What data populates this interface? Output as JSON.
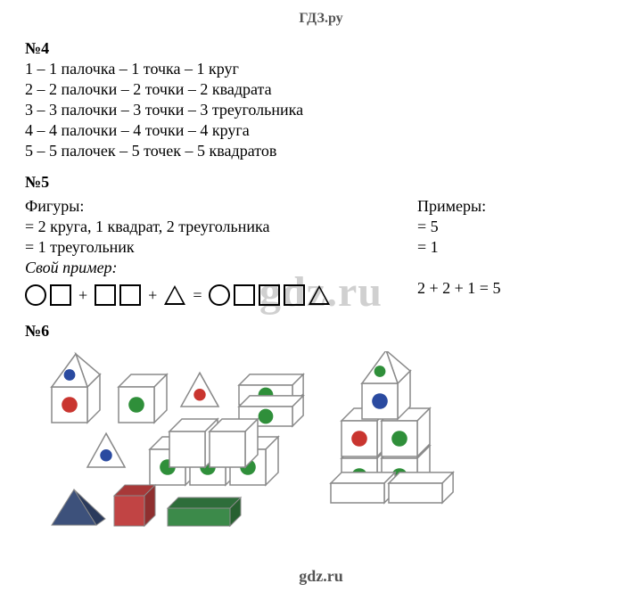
{
  "header": "ГДЗ.ру",
  "watermark": "gdz.ru",
  "footer": "gdz.ru",
  "sec4": {
    "title": "№4",
    "lines": [
      "1 – 1 палочка – 1 точка – 1 круг",
      "2 – 2 палочки – 2 точки – 2 квадрата",
      "3 – 3 палочки – 3 точки – 3 треугольника",
      "4 – 4 палочки – 4 точки – 4 круга",
      "5 – 5 палочек – 5 точек – 5 квадратов"
    ]
  },
  "sec5": {
    "title": "№5",
    "left_heading": "Фигуры:",
    "right_heading": "Примеры:",
    "left_lines": [
      "= 2 круга, 1 квадрат, 2 треугольника",
      "= 1 треугольник"
    ],
    "right_lines": [
      "= 5",
      "= 1"
    ],
    "own_label": "Свой пример:",
    "own_answer": "2 + 2 + 1 = 5",
    "eq_plus": "+",
    "eq_eq": "="
  },
  "sec6": {
    "title": "№6",
    "dot_colors": {
      "red": "#c9352f",
      "blue": "#2a4aa0",
      "green": "#2f8f3a"
    },
    "solids": {
      "pyramid_fill": "#3d517b",
      "cube_fill": "#c14444",
      "box_fill": "#3c8a4a",
      "solids_shadow": "#8a8a8a"
    },
    "line_color": "#8a8a8a",
    "face_fill": "#ffffff"
  }
}
